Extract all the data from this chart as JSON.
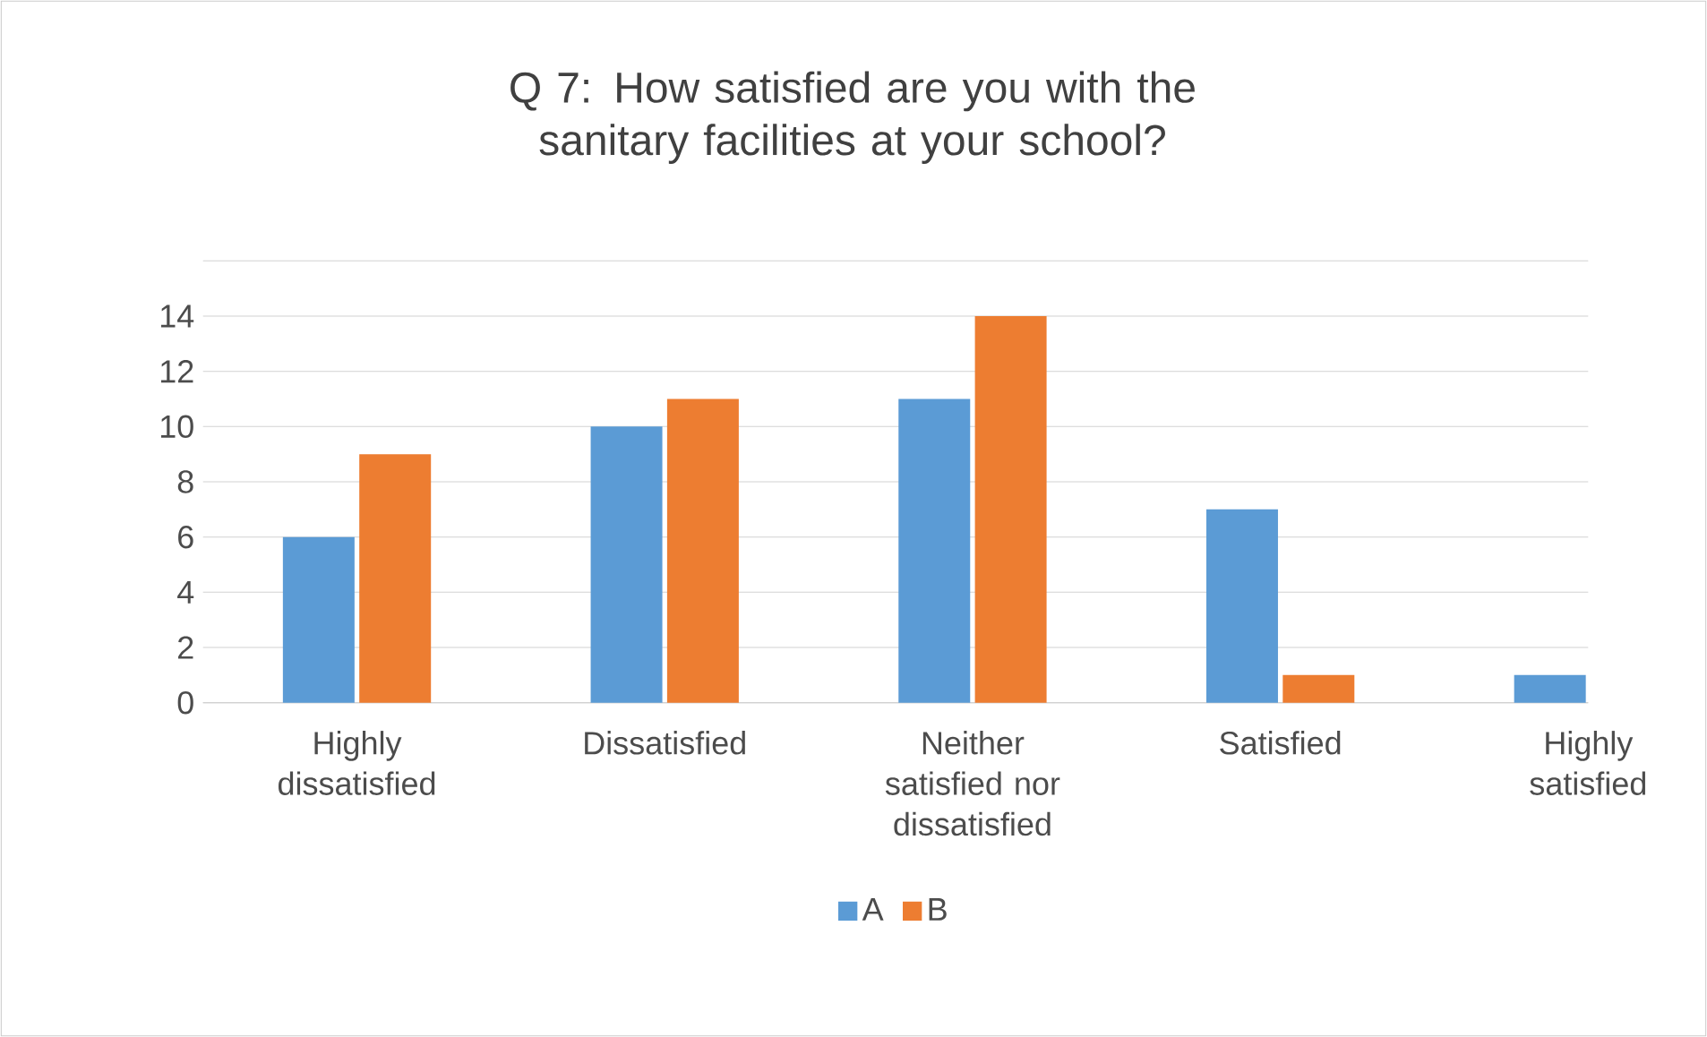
{
  "chart_data": {
    "type": "bar",
    "title": "Q 7:   How satisfied are you with the sanitary facilities at your school?",
    "categories": [
      "Highly dissatisfied",
      "Dissatisfied",
      "Neither satisfied nor dissatisfied",
      "Satisfied",
      "Highly satisfied"
    ],
    "series": [
      {
        "name": "A",
        "color": "#5b9bd5",
        "values": [
          6,
          10,
          11,
          7,
          1
        ]
      },
      {
        "name": "B",
        "color": "#ed7d31",
        "values": [
          9,
          11,
          14,
          1,
          0
        ]
      }
    ],
    "ylim": [
      0,
      16
    ],
    "yticks": [
      0,
      2,
      4,
      6,
      8,
      10,
      12,
      14,
      {
        "value": 16,
        "label": null
      }
    ],
    "grid": "y",
    "legend": "bottom"
  }
}
